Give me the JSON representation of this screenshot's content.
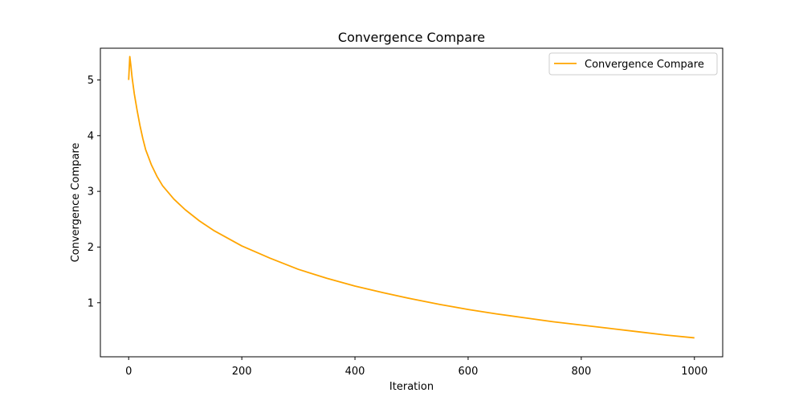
{
  "chart_data": {
    "type": "line",
    "title": "Convergence Compare",
    "xlabel": "Iteration",
    "ylabel": "Convergence Compare",
    "xlim": [
      -50,
      1050
    ],
    "ylim": [
      0.03,
      5.57
    ],
    "xticks": [
      0,
      200,
      400,
      600,
      800,
      1000
    ],
    "yticks": [
      1,
      2,
      3,
      4,
      5
    ],
    "grid": false,
    "legend": {
      "position": "top-right"
    },
    "series": [
      {
        "name": "Convergence Compare",
        "color": "#FFA500",
        "x": [
          0,
          2,
          4,
          6,
          10,
          15,
          20,
          25,
          30,
          40,
          50,
          60,
          80,
          100,
          125,
          150,
          200,
          250,
          300,
          350,
          400,
          450,
          500,
          550,
          600,
          650,
          700,
          750,
          800,
          850,
          900,
          950,
          1000
        ],
        "y": [
          5.0,
          5.42,
          5.25,
          5.05,
          4.75,
          4.45,
          4.18,
          3.95,
          3.75,
          3.48,
          3.27,
          3.1,
          2.86,
          2.67,
          2.47,
          2.3,
          2.02,
          1.8,
          1.6,
          1.44,
          1.3,
          1.18,
          1.07,
          0.97,
          0.88,
          0.8,
          0.73,
          0.66,
          0.6,
          0.54,
          0.48,
          0.42,
          0.37
        ]
      }
    ]
  }
}
